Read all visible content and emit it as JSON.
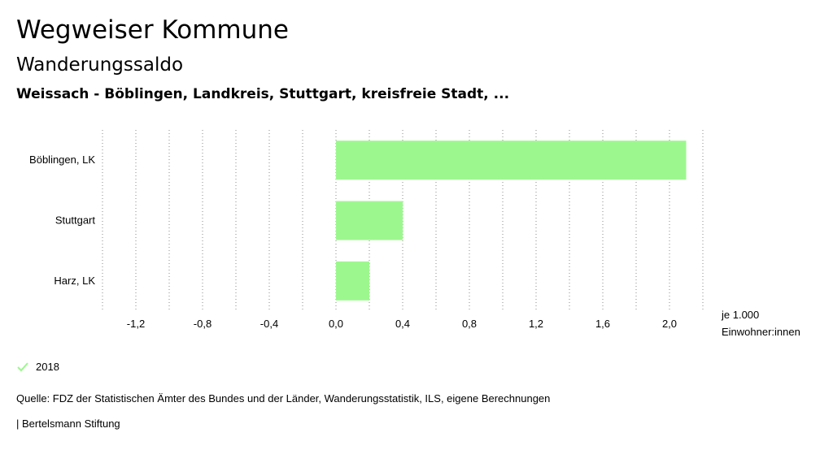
{
  "header": {
    "title": "Wegweiser Kommune",
    "subtitle": "Wanderungssaldo",
    "region": "Weissach - Böblingen, Landkreis, Stuttgart, kreisfreie Stadt, ..."
  },
  "chart_data": {
    "type": "bar",
    "orientation": "horizontal",
    "categories": [
      "Böblingen, LK",
      "Stuttgart",
      "Harz, LK"
    ],
    "series": [
      {
        "name": "2018",
        "values": [
          2.1,
          0.4,
          0.2
        ],
        "color": "#9cf88e"
      }
    ],
    "xlim": [
      -1.4,
      2.2
    ],
    "ticks": [
      -1.2,
      -0.8,
      -0.4,
      0.0,
      0.4,
      0.8,
      1.2,
      1.6,
      2.0
    ],
    "tick_labels": [
      "-1,2",
      "-0,8",
      "-0,4",
      "0,0",
      "0,4",
      "0,8",
      "1,2",
      "1,6",
      "2,0"
    ],
    "unit_line1": "je 1.000",
    "unit_line2": "Einwohner:innen",
    "grid": "vertical dotted"
  },
  "legend": {
    "label": "2018",
    "icon": "check-icon",
    "color": "#9cf88e"
  },
  "footer": {
    "source": "Quelle: FDZ der Statistischen Ämter des Bundes und der Länder, Wanderungsstatistik, ILS, eigene Berechnungen",
    "brand": "| Bertelsmann Stiftung"
  }
}
